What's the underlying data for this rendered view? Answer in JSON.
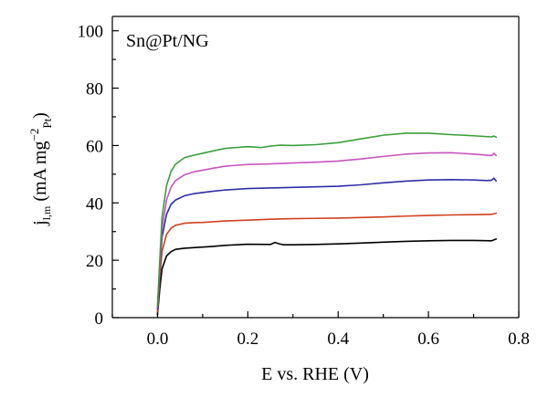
{
  "chart_data": {
    "type": "line",
    "annotation": "Sn@Pt/NG",
    "xlabel": "E vs. RHE (V)",
    "ylabel": {
      "main": "j",
      "main_sub": "l,m",
      "unit_open": " (mA mg",
      "unit_sup": "−2",
      "unit_sub": "Pt",
      "unit_close": ")"
    },
    "xlim": [
      -0.1,
      0.8
    ],
    "ylim": [
      0,
      105
    ],
    "xticks": [
      "0.0",
      "0.2",
      "0.4",
      "0.6",
      "0.8"
    ],
    "yticks": [
      "0",
      "20",
      "40",
      "60",
      "80",
      "100"
    ],
    "grid": false,
    "series": [
      {
        "color": "#000000",
        "x": [
          0.0,
          0.005,
          0.01,
          0.02,
          0.03,
          0.04,
          0.06,
          0.08,
          0.1,
          0.12,
          0.15,
          0.2,
          0.25,
          0.26,
          0.27,
          0.28,
          0.3,
          0.35,
          0.4,
          0.45,
          0.5,
          0.55,
          0.6,
          0.65,
          0.7,
          0.74,
          0.75
        ],
        "y": [
          1.0,
          10.0,
          17.0,
          21.5,
          23.0,
          23.8,
          24.2,
          24.4,
          24.6,
          24.8,
          25.2,
          25.6,
          25.5,
          26.2,
          25.7,
          25.4,
          25.4,
          25.5,
          25.7,
          26.0,
          26.3,
          26.6,
          26.8,
          26.9,
          26.9,
          26.8,
          27.4
        ]
      },
      {
        "color": "#d2401f",
        "x": [
          0.0,
          0.005,
          0.01,
          0.02,
          0.03,
          0.04,
          0.06,
          0.08,
          0.1,
          0.12,
          0.15,
          0.2,
          0.25,
          0.3,
          0.35,
          0.4,
          0.45,
          0.5,
          0.55,
          0.6,
          0.65,
          0.7,
          0.74,
          0.75
        ],
        "y": [
          2.0,
          14.0,
          23.0,
          29.0,
          31.2,
          32.2,
          32.9,
          33.1,
          33.2,
          33.4,
          33.7,
          34.0,
          34.3,
          34.5,
          34.6,
          34.7,
          34.9,
          35.1,
          35.4,
          35.6,
          35.8,
          35.9,
          36.0,
          36.4
        ]
      },
      {
        "color": "#2e2ea8",
        "x": [
          0.0,
          0.005,
          0.01,
          0.02,
          0.03,
          0.04,
          0.06,
          0.08,
          0.1,
          0.12,
          0.15,
          0.2,
          0.25,
          0.3,
          0.35,
          0.4,
          0.45,
          0.5,
          0.55,
          0.6,
          0.65,
          0.7,
          0.73,
          0.74,
          0.745,
          0.75
        ],
        "y": [
          3.0,
          17.0,
          28.0,
          36.0,
          39.5,
          41.0,
          42.5,
          43.2,
          43.6,
          44.0,
          44.5,
          45.0,
          45.2,
          45.4,
          45.6,
          45.8,
          46.3,
          47.0,
          47.6,
          48.0,
          48.1,
          48.0,
          47.8,
          47.9,
          48.6,
          47.6
        ]
      },
      {
        "color": "#c855c0",
        "x": [
          0.0,
          0.005,
          0.01,
          0.02,
          0.03,
          0.04,
          0.06,
          0.08,
          0.1,
          0.12,
          0.15,
          0.2,
          0.25,
          0.3,
          0.35,
          0.4,
          0.45,
          0.5,
          0.55,
          0.6,
          0.65,
          0.7,
          0.74,
          0.745,
          0.75
        ],
        "y": [
          3.5,
          18.0,
          31.0,
          41.0,
          45.5,
          47.8,
          49.8,
          50.8,
          51.4,
          52.0,
          52.8,
          53.4,
          53.6,
          53.9,
          54.2,
          54.6,
          55.3,
          56.2,
          57.0,
          57.4,
          57.5,
          57.0,
          56.5,
          57.3,
          56.5
        ]
      },
      {
        "color": "#3a9e3a",
        "x": [
          0.0,
          0.005,
          0.01,
          0.02,
          0.03,
          0.04,
          0.06,
          0.08,
          0.1,
          0.12,
          0.15,
          0.2,
          0.23,
          0.25,
          0.27,
          0.3,
          0.35,
          0.4,
          0.45,
          0.5,
          0.55,
          0.6,
          0.65,
          0.7,
          0.74,
          0.745,
          0.75
        ],
        "y": [
          4.0,
          20.0,
          35.0,
          46.0,
          51.0,
          53.5,
          55.8,
          56.6,
          57.3,
          58.0,
          59.0,
          59.6,
          59.3,
          59.8,
          60.1,
          60.0,
          60.3,
          61.0,
          62.3,
          63.6,
          64.3,
          64.3,
          63.8,
          63.4,
          63.0,
          63.3,
          62.9
        ]
      }
    ]
  }
}
